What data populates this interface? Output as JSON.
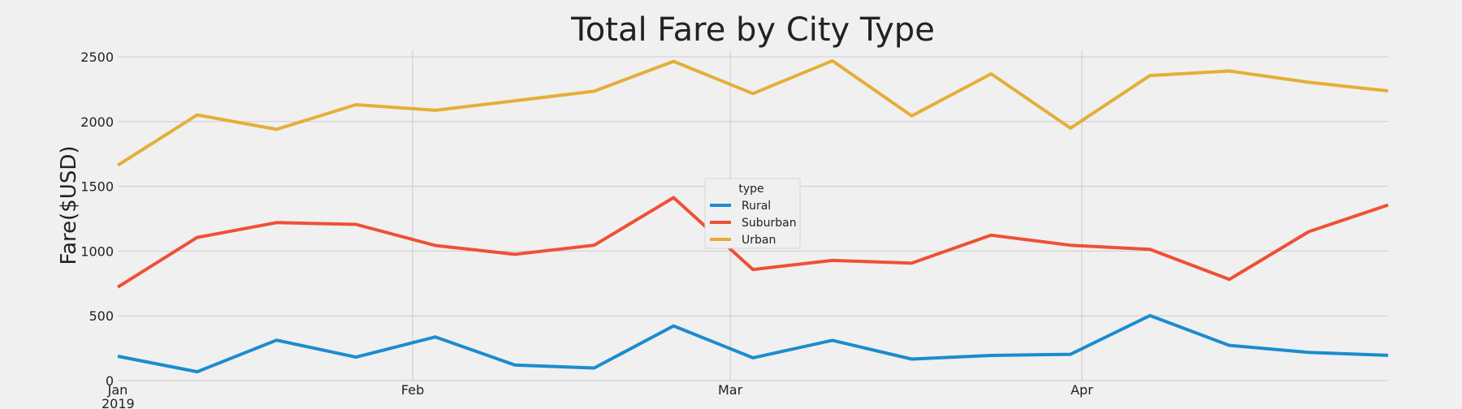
{
  "chart_data": {
    "type": "line",
    "title": "Total Fare by City Type",
    "xlabel": "",
    "ylabel": "Fare($USD)",
    "x": [
      "2019-01-06",
      "2019-01-13",
      "2019-01-20",
      "2019-01-27",
      "2019-02-03",
      "2019-02-10",
      "2019-02-17",
      "2019-02-24",
      "2019-03-03",
      "2019-03-10",
      "2019-03-17",
      "2019-03-24",
      "2019-03-31",
      "2019-04-07",
      "2019-04-14",
      "2019-04-21",
      "2019-04-28"
    ],
    "x_ticks": [
      {
        "label": "Jan",
        "sub": "2019"
      },
      {
        "label": "Feb",
        "sub": ""
      },
      {
        "label": "Mar",
        "sub": ""
      },
      {
        "label": "Apr",
        "sub": ""
      }
    ],
    "ylim": [
      0,
      2550
    ],
    "yticks": [
      0,
      500,
      1000,
      1500,
      2000,
      2500
    ],
    "grid": true,
    "legend": {
      "title": "type",
      "placement": "center"
    },
    "series": [
      {
        "name": "Rural",
        "color": "#1c8ccf",
        "values": [
          188,
          68,
          312,
          181,
          337,
          120,
          97,
          422,
          176,
          311,
          166,
          194,
          203,
          502,
          272,
          218,
          195
        ]
      },
      {
        "name": "Suburban",
        "color": "#ef5036",
        "values": [
          722,
          1105,
          1220,
          1206,
          1043,
          975,
          1045,
          1413,
          858,
          928,
          907,
          1123,
          1045,
          1013,
          781,
          1150,
          1356
        ]
      },
      {
        "name": "Urban",
        "color": "#e5ae38",
        "values": [
          1662,
          2051,
          1940,
          2130,
          2087,
          2160,
          2234,
          2465,
          2216,
          2469,
          2044,
          2368,
          1949,
          2355,
          2390,
          2303,
          2237
        ]
      }
    ]
  }
}
